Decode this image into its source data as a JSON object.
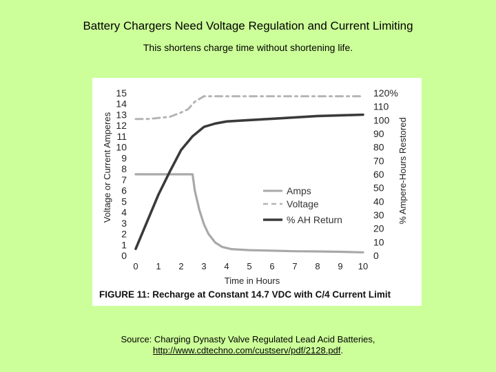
{
  "slide": {
    "title": "Battery Chargers Need Voltage Regulation and Current Limiting",
    "subtitle": "This shortens charge time without shortening life.",
    "source_text": "Source: Charging Dynasty Valve Regulated Lead Acid Batteries,",
    "source_link": "http://www.cdtechno.com/custserv/pdf/2128.pdf",
    "source_suffix": "."
  },
  "colors": {
    "background": "#ccff99",
    "amps": "#a8a8a8",
    "voltage": "#b4b4b4",
    "ah_return": "#3a3a3a"
  },
  "chart_data": {
    "type": "line",
    "title": "",
    "caption": "FIGURE 11:  Recharge at Constant 14.7 VDC with C/4 Current Limit",
    "xlabel": "Time in Hours",
    "ylabel": "Voltage or Current Amperes",
    "y2label": "% Ampere-Hours Restored",
    "xlim": [
      0,
      10
    ],
    "ylim": [
      0,
      15
    ],
    "y2lim": [
      0,
      120
    ],
    "x_ticks": [
      "0",
      "1",
      "2",
      "3",
      "4",
      "5",
      "6",
      "7",
      "8",
      "9",
      "10"
    ],
    "y_ticks": [
      "0",
      "1",
      "2",
      "3",
      "4",
      "5",
      "6",
      "7",
      "8",
      "9",
      "10",
      "11",
      "12",
      "13",
      "14",
      "15"
    ],
    "y2_ticks": [
      "0",
      "10",
      "20",
      "30",
      "40",
      "50",
      "60",
      "70",
      "80",
      "90",
      "100",
      "110",
      "120%"
    ],
    "legend_position": "center-right",
    "grid": false,
    "series": [
      {
        "name": "Amps",
        "axis": "left",
        "style": "solid",
        "points": [
          [
            0,
            7.5
          ],
          [
            2.5,
            7.5
          ],
          [
            2.6,
            6.0
          ],
          [
            2.8,
            4.2
          ],
          [
            3.0,
            2.9
          ],
          [
            3.2,
            2.0
          ],
          [
            3.5,
            1.2
          ],
          [
            3.8,
            0.8
          ],
          [
            4.2,
            0.6
          ],
          [
            5,
            0.5
          ],
          [
            6,
            0.45
          ],
          [
            7,
            0.4
          ],
          [
            8,
            0.38
          ],
          [
            9,
            0.35
          ],
          [
            10,
            0.3
          ]
        ]
      },
      {
        "name": "Voltage",
        "axis": "left",
        "style": "dashed",
        "points": [
          [
            0,
            12.6
          ],
          [
            0.5,
            12.6
          ],
          [
            1.0,
            12.7
          ],
          [
            1.5,
            12.8
          ],
          [
            2.0,
            13.2
          ],
          [
            2.3,
            13.5
          ],
          [
            2.6,
            14.2
          ],
          [
            3.0,
            14.7
          ],
          [
            4,
            14.7
          ],
          [
            6,
            14.7
          ],
          [
            8,
            14.7
          ],
          [
            10,
            14.7
          ]
        ]
      },
      {
        "name": "% AH Return",
        "axis": "right",
        "style": "solid",
        "points": [
          [
            0,
            5
          ],
          [
            0.5,
            25
          ],
          [
            1,
            45
          ],
          [
            1.5,
            62
          ],
          [
            2,
            78
          ],
          [
            2.5,
            88
          ],
          [
            3,
            95
          ],
          [
            3.5,
            97.5
          ],
          [
            4,
            99
          ],
          [
            5,
            100
          ],
          [
            6,
            101
          ],
          [
            7,
            102
          ],
          [
            8,
            103
          ],
          [
            9,
            103.5
          ],
          [
            10,
            104
          ]
        ]
      }
    ]
  }
}
